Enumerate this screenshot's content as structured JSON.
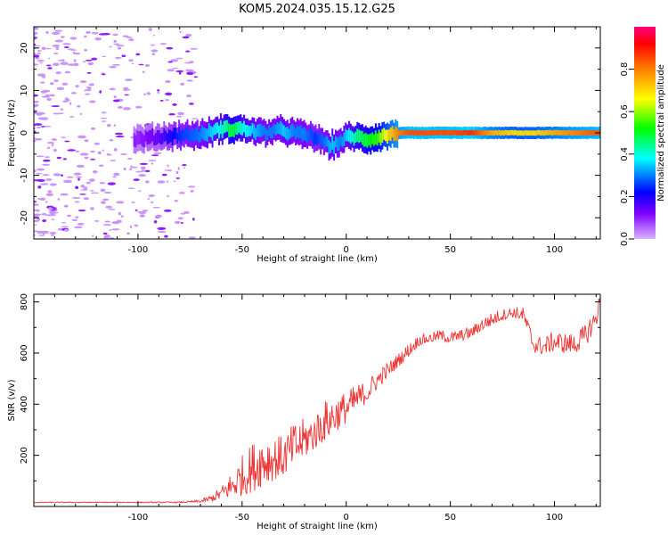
{
  "title": "KOM5.2024.035.15.12.G25",
  "colors": {
    "snr_line": "#ee3333",
    "colorbar_stops": [
      "#d9b3ff",
      "#8000ff",
      "#0000ff",
      "#00ffff",
      "#00ff00",
      "#ffff00",
      "#ff8000",
      "#ff0000",
      "#ff0080"
    ]
  },
  "chart_data": [
    {
      "type": "heatmap",
      "xlabel": "Height of straight line (km)",
      "ylabel": "Frequency (Hz)",
      "xlim": [
        -150,
        122
      ],
      "ylim": [
        -25,
        25
      ],
      "xticks": [
        -100,
        -50,
        0,
        50,
        100
      ],
      "yticks": [
        -20,
        -10,
        0,
        10,
        20
      ],
      "colorbar": {
        "label": "Normalized spectral amplitude",
        "range": [
          0,
          1
        ],
        "ticks": [
          0.0,
          0.2,
          0.4,
          0.6,
          0.8
        ]
      },
      "ridge": {
        "x": [
          -100,
          -90,
          -80,
          -70,
          -60,
          -55,
          -50,
          -45,
          -40,
          -35,
          -30,
          -25,
          -20,
          -15,
          -10,
          -7,
          -3,
          0,
          5,
          10,
          15,
          20,
          25,
          30,
          40,
          50,
          60,
          70,
          80,
          90,
          100,
          110,
          122
        ],
        "frequency": [
          -1.5,
          -1.0,
          -0.5,
          -0.5,
          1.0,
          1.0,
          1.0,
          0.5,
          0.0,
          0.5,
          0.5,
          0.0,
          -0.5,
          -1.0,
          -2.5,
          -3.0,
          -2.0,
          -1.0,
          -1.0,
          -1.5,
          -1.0,
          -0.5,
          0.0,
          0.0,
          0.0,
          0.0,
          0.0,
          0.0,
          0.0,
          0.0,
          0.0,
          0.0,
          0.0
        ],
        "amplitude": [
          0.1,
          0.15,
          0.25,
          0.3,
          0.4,
          0.5,
          0.4,
          0.35,
          0.3,
          0.3,
          0.35,
          0.3,
          0.3,
          0.25,
          0.3,
          0.35,
          0.3,
          0.35,
          0.45,
          0.5,
          0.55,
          0.7,
          0.8,
          0.85,
          0.85,
          0.85,
          0.88,
          0.75,
          0.7,
          0.7,
          0.75,
          0.8,
          0.85
        ]
      }
    },
    {
      "type": "line",
      "xlabel": "Height of straight line (km)",
      "ylabel": "SNR (v/v)",
      "xlim": [
        -150,
        122
      ],
      "ylim": [
        0,
        830
      ],
      "xticks": [
        -100,
        -50,
        0,
        50,
        100
      ],
      "yticks": [
        200,
        400,
        600,
        800
      ],
      "series": [
        {
          "x": [
            -150,
            -120,
            -100,
            -80,
            -70,
            -65,
            -60,
            -55,
            -50,
            -45,
            -40,
            -35,
            -30,
            -25,
            -20,
            -15,
            -10,
            -5,
            0,
            5,
            10,
            15,
            20,
            25,
            30,
            35,
            40,
            45,
            50,
            55,
            60,
            65,
            70,
            75,
            80,
            85,
            90,
            95,
            100,
            105,
            110,
            115,
            120,
            122
          ],
          "y": [
            15,
            15,
            15,
            15,
            18,
            25,
            40,
            60,
            85,
            110,
            140,
            150,
            160,
            200,
            230,
            260,
            300,
            330,
            360,
            400,
            430,
            480,
            520,
            560,
            600,
            640,
            650,
            660,
            650,
            660,
            670,
            700,
            720,
            740,
            750,
            740,
            620,
            610,
            630,
            620,
            620,
            650,
            720,
            800
          ],
          "jitter": [
            2,
            2,
            2,
            3,
            6,
            15,
            30,
            60,
            90,
            110,
            120,
            100,
            90,
            100,
            90,
            80,
            90,
            80,
            70,
            60,
            50,
            40,
            35,
            30,
            30,
            25,
            20,
            25,
            25,
            25,
            25,
            30,
            30,
            25,
            25,
            30,
            40,
            40,
            45,
            45,
            45,
            50,
            50,
            30
          ]
        }
      ]
    }
  ]
}
